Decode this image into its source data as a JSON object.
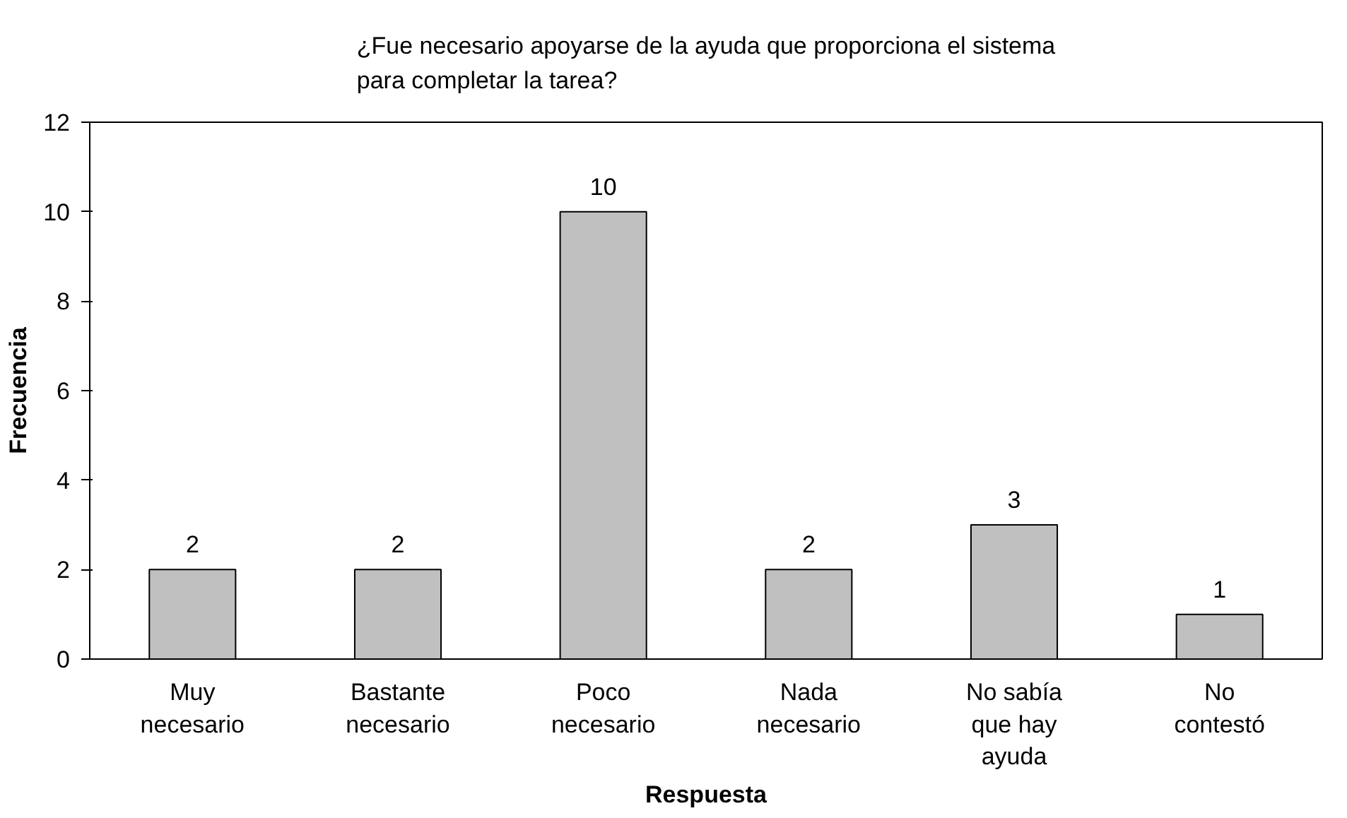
{
  "chart_data": {
    "type": "bar",
    "title": "¿Fue necesario apoyarse de la ayuda que proporciona el sistema para completar la tarea?",
    "xlabel": "Respuesta",
    "ylabel": "Frecuencia",
    "categories": [
      "Muy necesario",
      "Bastante necesario",
      "Poco necesario",
      "Nada necesario",
      "No sabía que hay ayuda",
      "No contestó"
    ],
    "values": [
      2,
      2,
      10,
      2,
      3,
      1
    ],
    "color": "#c0c0c0",
    "ylim": [
      0,
      12
    ],
    "yticks": [
      0,
      2,
      4,
      6,
      8,
      10,
      12
    ],
    "grid": false,
    "data_labels": true
  }
}
